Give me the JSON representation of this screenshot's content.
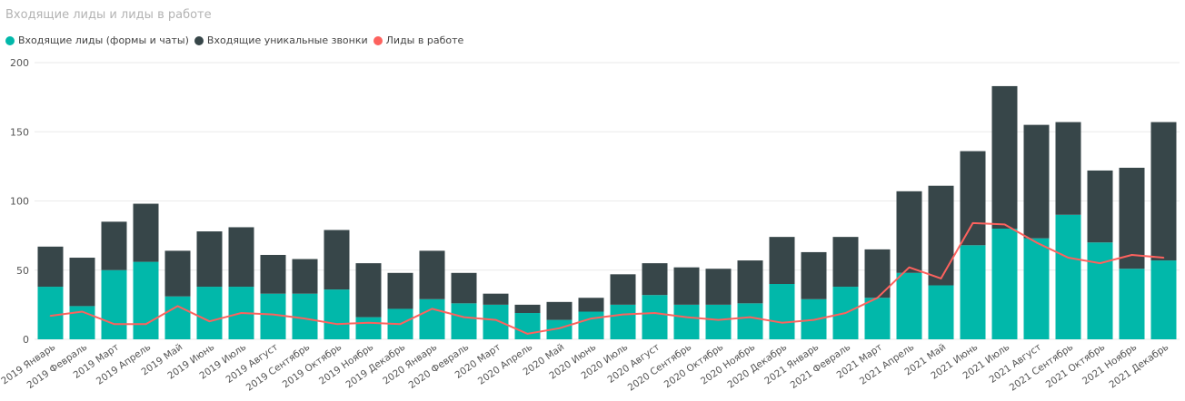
{
  "chart_data": {
    "type": "bar",
    "title": "Входящие лиды и лиды в работе",
    "stacked": true,
    "ylim": [
      0,
      200
    ],
    "yticks": [
      0,
      50,
      100,
      150,
      200
    ],
    "grid": true,
    "legend_position": "top-left",
    "categories": [
      "2019 Январь",
      "2019 Февраль",
      "2019 Март",
      "2019 Апрель",
      "2019 Май",
      "2019 Июнь",
      "2019 Июль",
      "2019 Август",
      "2019 Сентябрь",
      "2019 Октябрь",
      "2019 Ноябрь",
      "2019 Декабрь",
      "2020 Январь",
      "2020 Февраль",
      "2020 Март",
      "2020 Апрель",
      "2020 Май",
      "2020 Июнь",
      "2020 Июль",
      "2020 Август",
      "2020 Сентябрь",
      "2020 Октябрь",
      "2020 Ноябрь",
      "2020 Декабрь",
      "2021 Январь",
      "2021 Февраль",
      "2021 Март",
      "2021 Апрель",
      "2021 Май",
      "2021 Июнь",
      "2021 Июль",
      "2021 Август",
      "2021 Сентябрь",
      "2021 Октябрь",
      "2021 Ноябрь",
      "2021 Декабрь"
    ],
    "series": [
      {
        "name": "Входящие лиды (формы и чаты)",
        "type": "bar",
        "color": "#01B8AA",
        "values": [
          38,
          24,
          50,
          56,
          31,
          38,
          38,
          33,
          33,
          36,
          16,
          22,
          29,
          26,
          25,
          19,
          14,
          20,
          25,
          32,
          25,
          25,
          26,
          40,
          29,
          38,
          30,
          48,
          39,
          68,
          80,
          73,
          90,
          70,
          51,
          57
        ]
      },
      {
        "name": "Входящие уникальные звонки",
        "type": "bar",
        "color": "#374649",
        "values": [
          29,
          35,
          35,
          42,
          33,
          40,
          43,
          28,
          25,
          43,
          39,
          26,
          35,
          22,
          8,
          6,
          13,
          10,
          22,
          23,
          27,
          26,
          31,
          34,
          34,
          36,
          35,
          59,
          72,
          68,
          103,
          82,
          67,
          52,
          73,
          100
        ]
      },
      {
        "name": "Лиды в работе",
        "type": "line",
        "color": "#FD625E",
        "values": [
          17,
          20,
          11,
          11,
          24,
          13,
          19,
          18,
          15,
          11,
          12,
          11,
          22,
          16,
          14,
          4,
          8,
          15,
          18,
          19,
          16,
          14,
          16,
          12,
          14,
          19,
          30,
          52,
          44,
          84,
          83,
          70,
          59,
          55,
          61,
          59
        ]
      }
    ]
  }
}
